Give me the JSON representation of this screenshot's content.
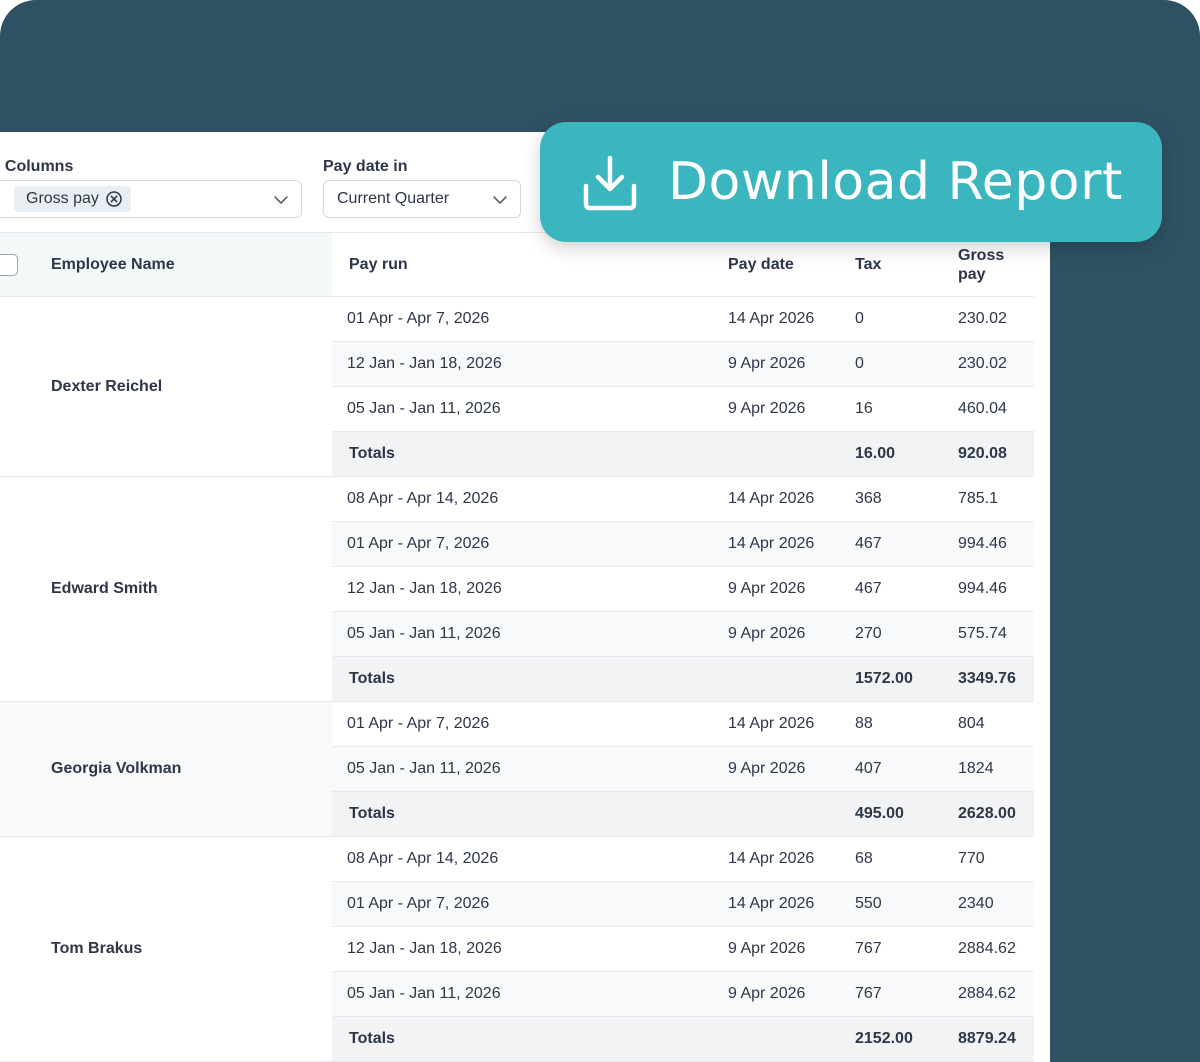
{
  "filters": {
    "columns": {
      "label": "l Columns",
      "chips": [
        "Gross pay"
      ]
    },
    "pay_date": {
      "label": "Pay date in",
      "value": "Current Quarter"
    }
  },
  "download": {
    "label": "Download Report",
    "icon": "download-icon"
  },
  "table": {
    "headers": {
      "employee": "Employee Name",
      "pay_run": "Pay run",
      "pay_date": "Pay date",
      "tax": "Tax",
      "gross": "Gross pay"
    },
    "totals_label": "Totals",
    "employees": [
      {
        "name": "Dexter Reichel",
        "rows": [
          {
            "pay_run": "01 Apr - Apr 7, 2026",
            "pay_date": "14 Apr 2026",
            "tax": "0",
            "gross": "230.02"
          },
          {
            "pay_run": "12 Jan - Jan 18, 2026",
            "pay_date": "9 Apr 2026",
            "tax": "0",
            "gross": "230.02"
          },
          {
            "pay_run": "05 Jan - Jan 11, 2026",
            "pay_date": "9 Apr 2026",
            "tax": "16",
            "gross": "460.04"
          }
        ],
        "totals": {
          "tax": "16.00",
          "gross": "920.08"
        }
      },
      {
        "name": "Edward Smith",
        "rows": [
          {
            "pay_run": "08 Apr - Apr 14, 2026",
            "pay_date": "14 Apr 2026",
            "tax": "368",
            "gross": "785.1"
          },
          {
            "pay_run": "01 Apr - Apr 7, 2026",
            "pay_date": "14 Apr 2026",
            "tax": "467",
            "gross": "994.46"
          },
          {
            "pay_run": "12 Jan - Jan 18, 2026",
            "pay_date": "9 Apr 2026",
            "tax": "467",
            "gross": "994.46"
          },
          {
            "pay_run": "05 Jan - Jan 11, 2026",
            "pay_date": "9 Apr 2026",
            "tax": "270",
            "gross": "575.74"
          }
        ],
        "totals": {
          "tax": "1572.00",
          "gross": "3349.76"
        }
      },
      {
        "name": "Georgia Volkman",
        "rows": [
          {
            "pay_run": "01 Apr - Apr 7, 2026",
            "pay_date": "14 Apr 2026",
            "tax": "88",
            "gross": "804"
          },
          {
            "pay_run": "05 Jan - Jan 11, 2026",
            "pay_date": "9 Apr 2026",
            "tax": "407",
            "gross": "1824"
          }
        ],
        "totals": {
          "tax": "495.00",
          "gross": "2628.00"
        }
      },
      {
        "name": "Tom Brakus",
        "rows": [
          {
            "pay_run": "08 Apr - Apr 14, 2026",
            "pay_date": "14 Apr 2026",
            "tax": "68",
            "gross": "770"
          },
          {
            "pay_run": "01 Apr - Apr 7, 2026",
            "pay_date": "14 Apr 2026",
            "tax": "550",
            "gross": "2340"
          },
          {
            "pay_run": "12 Jan - Jan 18, 2026",
            "pay_date": "9 Apr 2026",
            "tax": "767",
            "gross": "2884.62"
          },
          {
            "pay_run": "05 Jan - Jan 11, 2026",
            "pay_date": "9 Apr 2026",
            "tax": "767",
            "gross": "2884.62"
          }
        ],
        "totals": {
          "tax": "2152.00",
          "gross": "8879.24"
        }
      }
    ]
  },
  "colors": {
    "background": "#2e5264",
    "accent": "#3bb6be",
    "header_text": "#2b8a92",
    "text": "#2d3748"
  }
}
